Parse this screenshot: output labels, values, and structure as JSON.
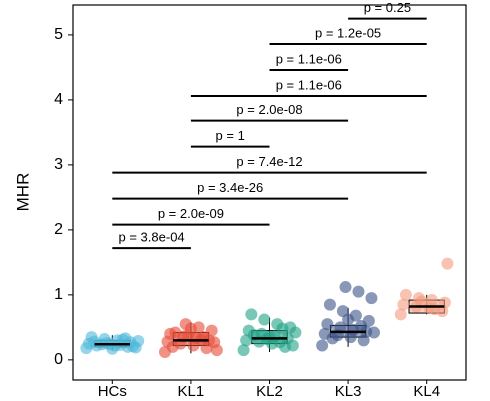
{
  "chart_data": {
    "type": "box",
    "ylabel": "MHR",
    "categories": [
      "HCs",
      "KL1",
      "KL2",
      "KL3",
      "KL4"
    ],
    "ylim": [
      -0.31,
      5.46
    ],
    "yticks": [
      0,
      1,
      2,
      3,
      4,
      5
    ],
    "boxes": [
      {
        "color": "#4FB8DA",
        "min": 0.15,
        "q1": 0.2,
        "median": 0.24,
        "q3": 0.3,
        "max": 0.38,
        "points": [
          0.18,
          0.2,
          0.22,
          0.24,
          0.25,
          0.27,
          0.3,
          0.32,
          0.35,
          0.21,
          0.23,
          0.26,
          0.28,
          0.19,
          0.31,
          0.24,
          0.22,
          0.29,
          0.33,
          0.17
        ]
      },
      {
        "color": "#E64B35",
        "min": 0.1,
        "q1": 0.22,
        "median": 0.3,
        "q3": 0.42,
        "max": 0.58,
        "points": [
          0.12,
          0.18,
          0.22,
          0.25,
          0.28,
          0.3,
          0.33,
          0.36,
          0.4,
          0.45,
          0.5,
          0.55,
          0.2,
          0.27,
          0.31,
          0.38,
          0.42,
          0.15,
          0.35,
          0.48
        ]
      },
      {
        "color": "#1FA187",
        "min": 0.12,
        "q1": 0.25,
        "median": 0.33,
        "q3": 0.45,
        "max": 0.65,
        "points": [
          0.15,
          0.2,
          0.25,
          0.28,
          0.3,
          0.33,
          0.36,
          0.4,
          0.45,
          0.5,
          0.55,
          0.62,
          0.7,
          0.22,
          0.27,
          0.32,
          0.38,
          0.42,
          0.48,
          0.35
        ]
      },
      {
        "color": "#3C5488",
        "min": 0.2,
        "q1": 0.35,
        "median": 0.43,
        "q3": 0.53,
        "max": 0.8,
        "points": [
          0.22,
          0.3,
          0.35,
          0.38,
          0.4,
          0.43,
          0.46,
          0.5,
          0.55,
          0.6,
          0.68,
          0.75,
          0.85,
          0.95,
          1.05,
          1.12,
          0.33,
          0.42,
          0.52,
          0.62
        ]
      },
      {
        "color": "#F39B7F",
        "min": 0.7,
        "q1": 0.72,
        "median": 0.82,
        "q3": 0.92,
        "max": 1.0,
        "points": [
          0.7,
          0.75,
          0.8,
          0.82,
          0.85,
          0.88,
          0.92,
          0.95,
          1.0,
          1.48,
          0.78,
          0.9
        ]
      }
    ],
    "comparisons": [
      {
        "from": "HCs",
        "to": "KL1",
        "y": 1.72,
        "label": "p = 3.8e-04"
      },
      {
        "from": "HCs",
        "to": "KL2",
        "y": 2.08,
        "label": "p = 2.0e-09"
      },
      {
        "from": "HCs",
        "to": "KL3",
        "y": 2.48,
        "label": "p = 3.4e-26"
      },
      {
        "from": "HCs",
        "to": "KL4",
        "y": 2.88,
        "label": "p = 7.4e-12"
      },
      {
        "from": "KL1",
        "to": "KL2",
        "y": 3.28,
        "label": "p = 1"
      },
      {
        "from": "KL1",
        "to": "KL3",
        "y": 3.68,
        "label": "p = 2.0e-08"
      },
      {
        "from": "KL1",
        "to": "KL4",
        "y": 4.06,
        "label": "p = 1.1e-06"
      },
      {
        "from": "KL2",
        "to": "KL3",
        "y": 4.46,
        "label": "p = 1.1e-06"
      },
      {
        "from": "KL2",
        "to": "KL4",
        "y": 4.86,
        "label": "p = 1.2e-05"
      },
      {
        "from": "KL3",
        "to": "KL4",
        "y": 5.25,
        "label": "p = 0.25"
      }
    ]
  }
}
